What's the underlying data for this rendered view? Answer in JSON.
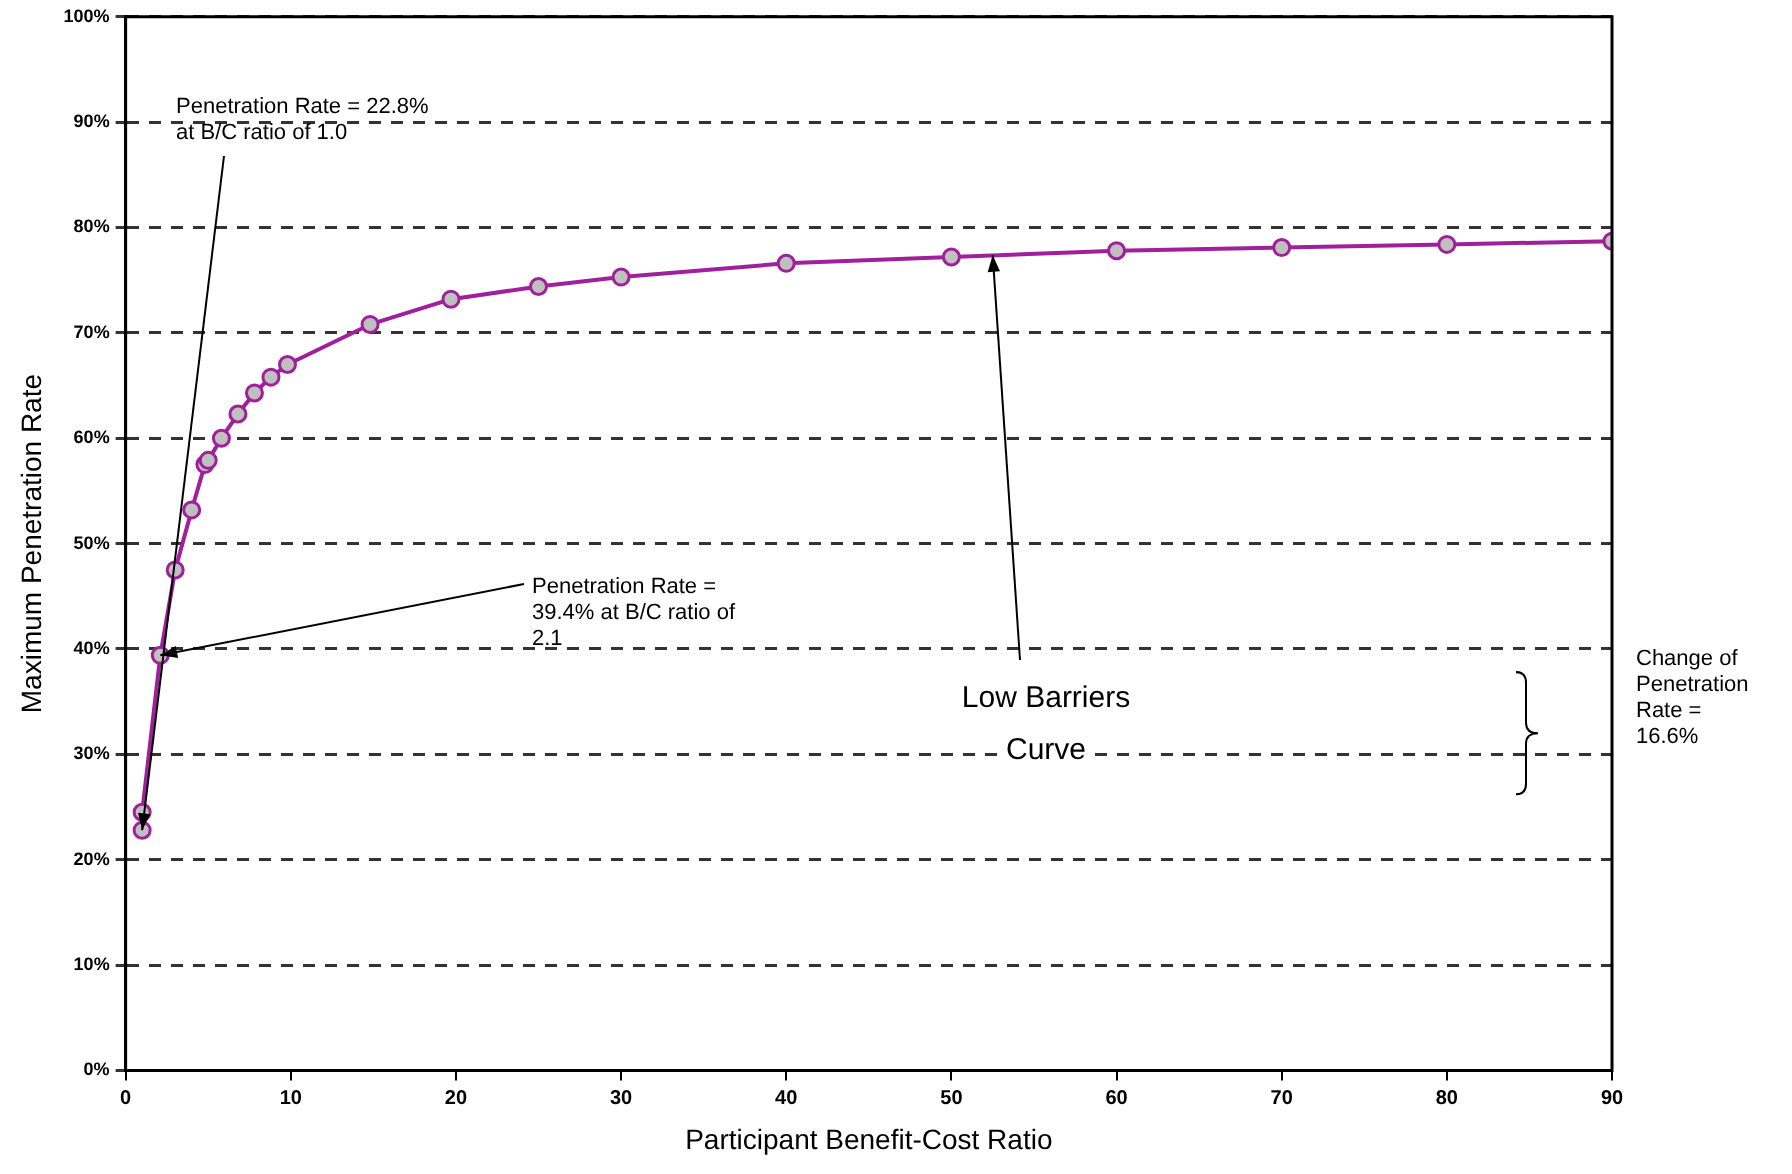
{
  "chart_data": {
    "type": "line",
    "xlabel": "Participant Benefit-Cost Ratio",
    "ylabel": "Maximum Penetration Rate",
    "series": [
      {
        "color": "#a0209c",
        "x": [
          1,
          1,
          2.1,
          3,
          4,
          4.8,
          5,
          5.8,
          6.8,
          7.8,
          8.8,
          9.8,
          14.8,
          19.7,
          25,
          30,
          40,
          50,
          60,
          70,
          80,
          90
        ],
        "values": [
          22.8,
          24.5,
          39.4,
          47.5,
          53.2,
          57.5,
          57.9,
          60,
          62.3,
          64.3,
          65.8,
          67,
          70.8,
          73.2,
          74.4,
          75.3,
          76.6,
          77.2,
          77.8,
          78.1,
          78.4,
          78.7
        ]
      }
    ],
    "xlim": [
      0,
      90
    ],
    "xticks": [
      0,
      10,
      20,
      30,
      40,
      50,
      60,
      70,
      80,
      90
    ],
    "ylim": [
      0,
      100
    ],
    "yticks": [
      {
        "value": 0,
        "label": "0%"
      },
      {
        "value": 10,
        "label": "10%"
      },
      {
        "value": 20,
        "label": "20%"
      },
      {
        "value": 30,
        "label": "30%"
      },
      {
        "value": 40,
        "label": "40%"
      },
      {
        "value": 50,
        "label": "50%"
      },
      {
        "value": 60,
        "label": "60%"
      },
      {
        "value": 70,
        "label": "70%"
      },
      {
        "value": 80,
        "label": "80%"
      },
      {
        "value": 90,
        "label": "90%"
      },
      {
        "value": 100,
        "label": "100%"
      }
    ],
    "grid": "y",
    "legend": false,
    "marker": "circle",
    "line_style": "solid",
    "annotations": [
      {
        "text": "Penetration Rate = 22.8% at B/C ratio of 1.0",
        "x": 1,
        "y": 22.8
      },
      {
        "text": "Penetration Rate = 39.4% at B/C ratio of 2.1",
        "x": 2.1,
        "y": 39.4
      },
      {
        "text": "Low Barriers Curve",
        "x": 52.5,
        "y": 77.4
      },
      "Change of Penetration Rate = 16.6%"
    ]
  }
}
